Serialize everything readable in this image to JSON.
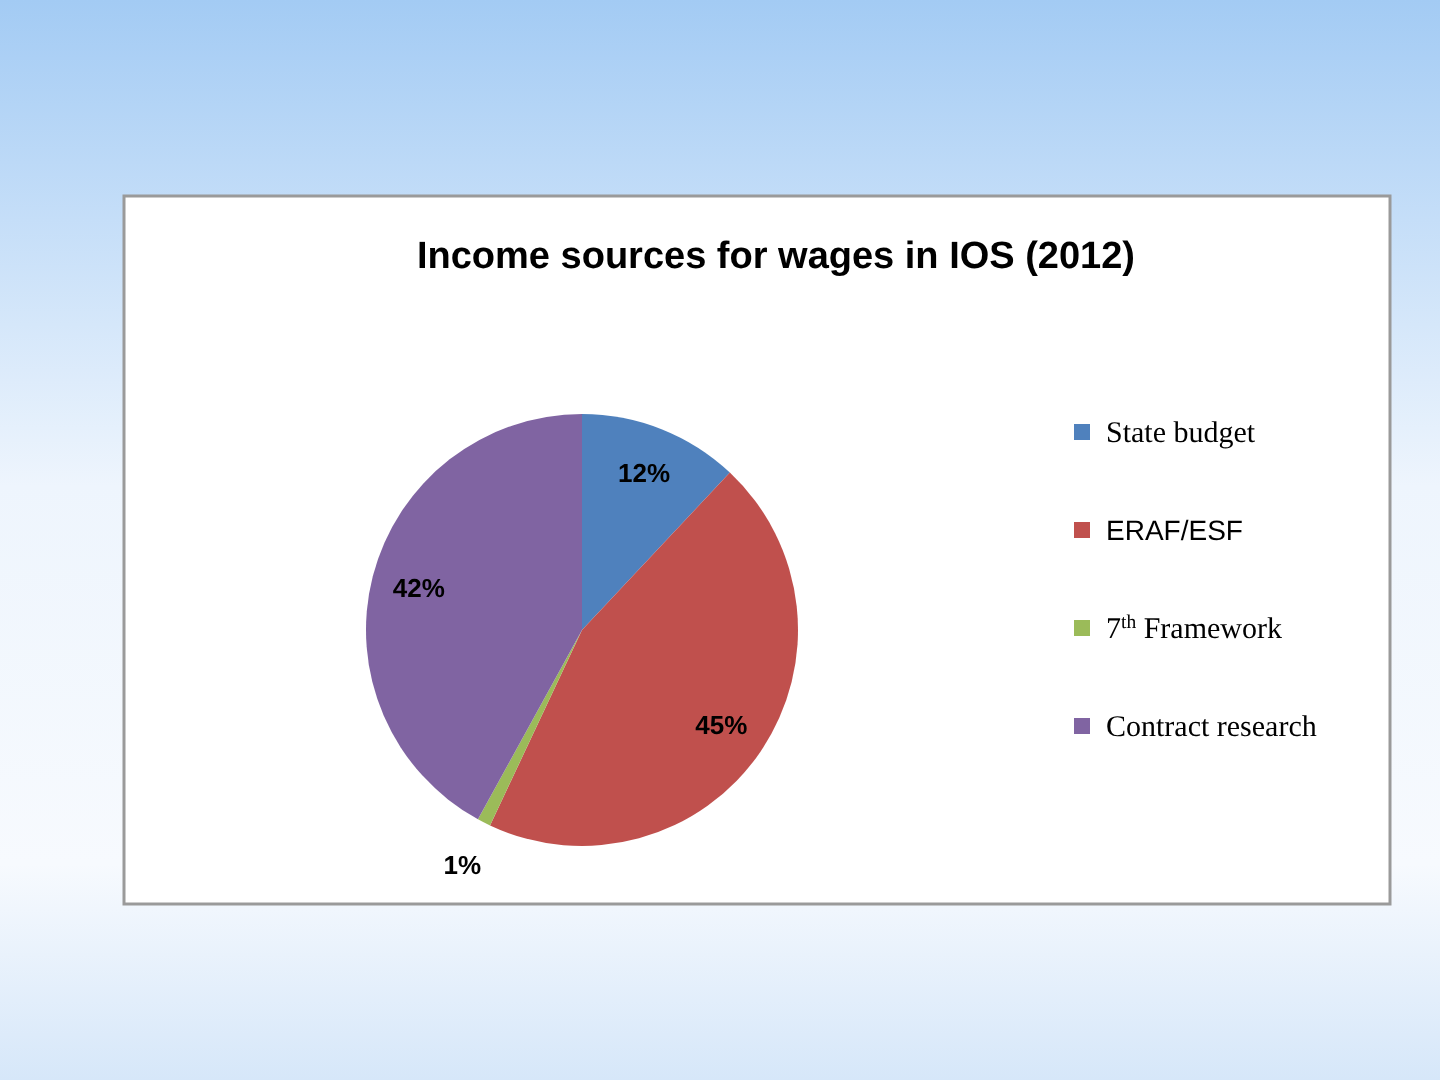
{
  "chart_data": {
    "type": "pie",
    "title": "Income sources for wages in IOS (2012)",
    "categories": [
      "State budget",
      "ERAF/ESF",
      "7$^{th}$ Framework",
      "Contract research"
    ],
    "values": [
      12,
      45,
      1,
      42
    ],
    "colors": [
      "#4f81bd",
      "#c0504d",
      "#9bbb59",
      "#8064a2"
    ],
    "value_labels": [
      "12%",
      "45%",
      "1%",
      "42%"
    ],
    "legend": "right"
  }
}
